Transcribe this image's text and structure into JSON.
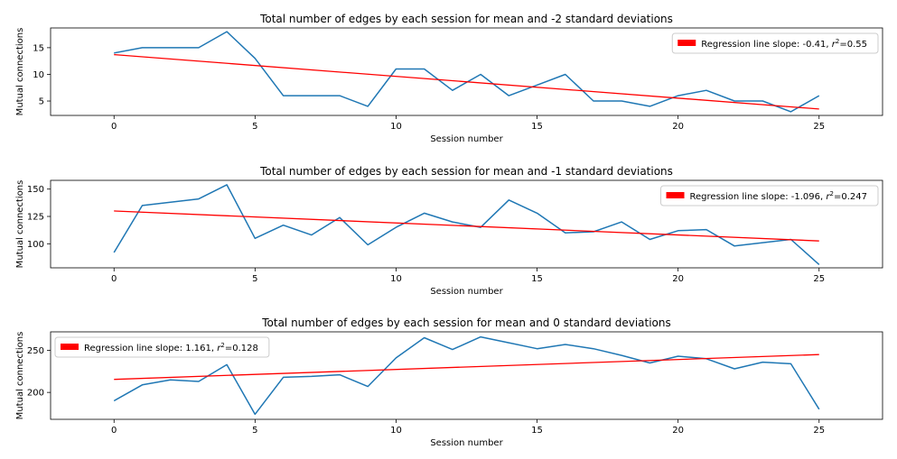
{
  "chart_data": [
    {
      "type": "line",
      "title": "Total number of edges by each session for mean and -2 standard deviations",
      "xlabel": "Session number",
      "ylabel": "Mutual connections",
      "xlim": [
        -2.25,
        27.25
      ],
      "ylim": [
        2.3,
        18.7
      ],
      "xticks": [
        0,
        5,
        10,
        15,
        20,
        25
      ],
      "yticks": [
        5,
        10,
        15
      ],
      "grid": false,
      "legend_position": "top-right",
      "series": [
        {
          "color": "#1f77b4",
          "x": [
            0,
            1,
            2,
            3,
            4,
            5,
            6,
            7,
            8,
            9,
            10,
            11,
            12,
            13,
            14,
            15,
            16,
            17,
            18,
            19,
            20,
            21,
            22,
            23,
            24,
            25
          ],
          "y": [
            14,
            15,
            15,
            15,
            18,
            13,
            6,
            6,
            6,
            4,
            11,
            11,
            7,
            10,
            6,
            8,
            10,
            5,
            5,
            4,
            6,
            7,
            5,
            5,
            3,
            6
          ]
        }
      ],
      "regression": {
        "color": "#ff0000",
        "x": [
          0,
          25
        ],
        "y": [
          13.7,
          3.5
        ],
        "legend_prefix": "Regression line slope: -0.41, ",
        "legend_r2": "=0.55"
      }
    },
    {
      "type": "line",
      "title": "Total number of edges by each session for mean and -1 standard deviations",
      "xlabel": "Session number",
      "ylabel": "Mutual connections",
      "xlim": [
        -2.25,
        27.25
      ],
      "ylim": [
        78,
        158
      ],
      "xticks": [
        0,
        5,
        10,
        15,
        20,
        25
      ],
      "yticks": [
        100,
        125,
        150
      ],
      "grid": false,
      "legend_position": "top-right",
      "series": [
        {
          "color": "#1f77b4",
          "x": [
            0,
            1,
            2,
            3,
            4,
            5,
            6,
            7,
            8,
            9,
            10,
            11,
            12,
            13,
            14,
            15,
            16,
            17,
            18,
            19,
            20,
            21,
            22,
            23,
            24,
            25
          ],
          "y": [
            92,
            135,
            138,
            141,
            154,
            105,
            117,
            108,
            124,
            99,
            115,
            128,
            120,
            115,
            140,
            128,
            110,
            111,
            120,
            104,
            112,
            113,
            98,
            101,
            104,
            81
          ]
        }
      ],
      "regression": {
        "color": "#ff0000",
        "x": [
          0,
          25
        ],
        "y": [
          130,
          102.6
        ],
        "legend_prefix": "Regression line slope: -1.096, ",
        "legend_r2": "=0.247"
      }
    },
    {
      "type": "line",
      "title": "Total number of edges by each session for mean and 0 standard deviations",
      "xlabel": "Session number",
      "ylabel": "Mutual connections",
      "xlim": [
        -2.25,
        27.25
      ],
      "ylim": [
        168,
        272
      ],
      "xticks": [
        0,
        5,
        10,
        15,
        20,
        25
      ],
      "yticks": [
        200,
        250
      ],
      "grid": false,
      "legend_position": "top-left",
      "series": [
        {
          "color": "#1f77b4",
          "x": [
            0,
            1,
            2,
            3,
            4,
            5,
            6,
            7,
            8,
            9,
            10,
            11,
            12,
            13,
            14,
            15,
            16,
            17,
            18,
            19,
            20,
            21,
            22,
            23,
            24,
            25
          ],
          "y": [
            190,
            209,
            215,
            213,
            233,
            174,
            218,
            219,
            221,
            207,
            241,
            265,
            251,
            266,
            259,
            252,
            257,
            252,
            244,
            235,
            243,
            240,
            228,
            236,
            234,
            180
          ]
        }
      ],
      "regression": {
        "color": "#ff0000",
        "x": [
          0,
          25
        ],
        "y": [
          215.5,
          245
        ],
        "legend_prefix": "Regression line slope: 1.161, ",
        "legend_r2": "=0.128"
      }
    }
  ]
}
